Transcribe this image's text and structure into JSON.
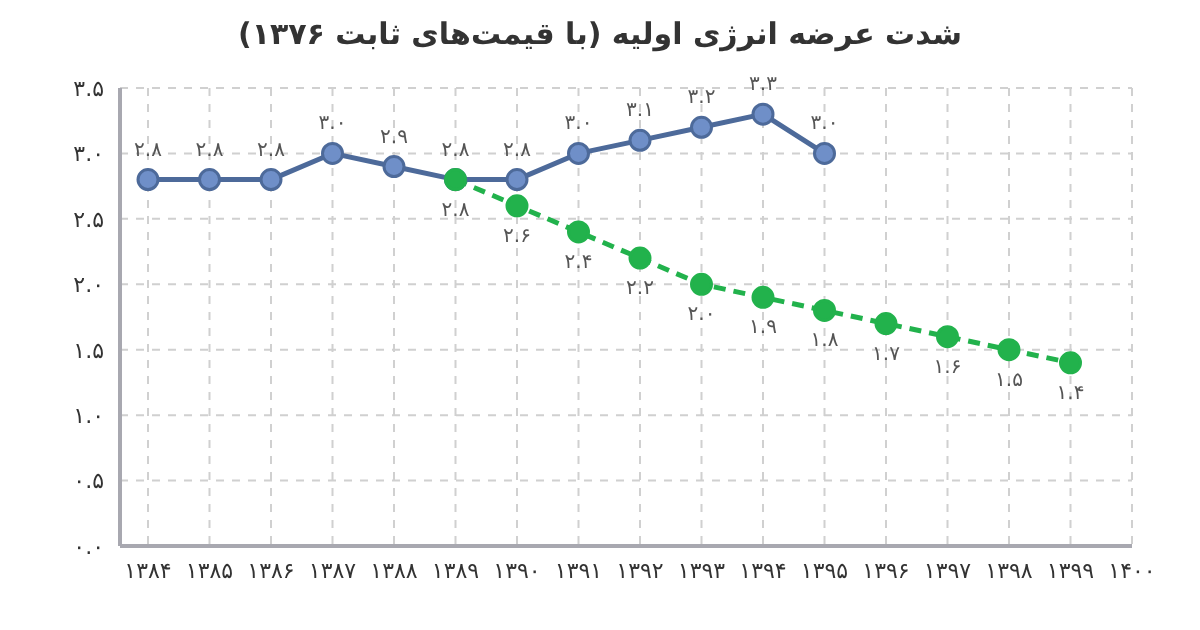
{
  "chart_data": {
    "type": "line",
    "title": "شدت عرضه انرژی اولیه (با قیمت‌های ثابت ۱۳۷۶)",
    "categories": [
      "۱۳۸۴",
      "۱۳۸۵",
      "۱۳۸۶",
      "۱۳۸۷",
      "۱۳۸۸",
      "۱۳۸۹",
      "۱۳۹۰",
      "۱۳۹۱",
      "۱۳۹۲",
      "۱۳۹۳",
      "۱۳۹۴",
      "۱۳۹۵",
      "۱۳۹۶",
      "۱۳۹۷",
      "۱۳۹۸",
      "۱۳۹۹",
      "۱۴۰۰"
    ],
    "series": [
      {
        "color": "#4d6a9a",
        "line_style": "solid",
        "values": [
          2.8,
          2.8,
          2.8,
          3.0,
          2.9,
          2.8,
          2.8,
          3.0,
          3.1,
          3.2,
          3.3,
          3.0,
          null,
          null,
          null,
          null,
          null
        ],
        "value_labels": [
          "۲.۸",
          "۲.۸",
          "۲.۸",
          "۳.۰",
          "۲.۹",
          "۲.۸",
          "۲.۸",
          "۳.۰",
          "۳.۱",
          "۳.۲",
          "۳.۳",
          "۳.۰",
          null,
          null,
          null,
          null,
          null
        ]
      },
      {
        "color": "#22b24c",
        "line_style": "dashed",
        "values": [
          null,
          null,
          null,
          null,
          null,
          2.8,
          2.6,
          2.4,
          2.2,
          2.0,
          1.9,
          1.8,
          1.7,
          1.6,
          1.5,
          1.4,
          null
        ],
        "value_labels": [
          null,
          null,
          null,
          null,
          null,
          "۲.۸",
          "۲.۶",
          "۲.۴",
          "۲.۲",
          "۲.۰",
          "۱.۹",
          "۱.۸",
          "۱.۷",
          "۱.۶",
          "۱.۵",
          "۱.۴",
          null
        ]
      }
    ],
    "ylim": [
      0,
      3.5
    ],
    "yticks": [
      {
        "value": 0,
        "label": "۰.۰"
      },
      {
        "value": 0.5,
        "label": "۰.۵"
      },
      {
        "value": 1,
        "label": "۱.۰"
      },
      {
        "value": 1.5,
        "label": "۱.۵"
      },
      {
        "value": 2,
        "label": "۲.۰"
      },
      {
        "value": 2.5,
        "label": "۲.۵"
      },
      {
        "value": 3,
        "label": "۳.۰"
      },
      {
        "value": 3.5,
        "label": "۳.۵"
      }
    ],
    "grid": true,
    "legend": false,
    "marker": "circle"
  }
}
